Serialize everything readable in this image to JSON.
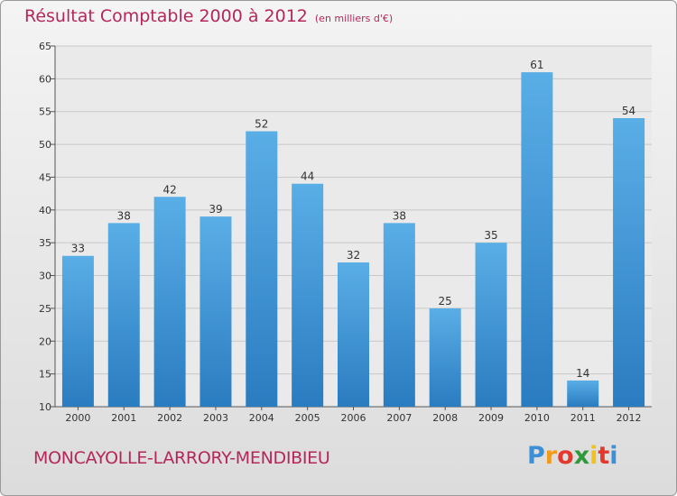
{
  "header": {
    "title": "Résultat Comptable 2000 à 2012",
    "subtitle": "(en milliers d'€)"
  },
  "footer": {
    "commune": "MONCAYOLLE-LARRORY-MENDIBIEU",
    "logo_letters": [
      "P",
      "r",
      "o",
      "x",
      "i",
      "t",
      "i"
    ],
    "logo_colors": [
      "#3d8fd6",
      "#f29a1c",
      "#e6372c",
      "#2e9a3a",
      "#f2c21c",
      "#e6372c",
      "#3d8fd6"
    ]
  },
  "chart_data": {
    "type": "bar",
    "title": "Résultat Comptable 2000 à 2012",
    "subtitle": "(en milliers d'€)",
    "xlabel": "",
    "ylabel": "",
    "categories": [
      "2000",
      "2001",
      "2002",
      "2003",
      "2004",
      "2005",
      "2006",
      "2007",
      "2008",
      "2009",
      "2010",
      "2011",
      "2012"
    ],
    "values": [
      33,
      38,
      42,
      39,
      52,
      44,
      32,
      38,
      25,
      35,
      61,
      14,
      54
    ],
    "ylim": [
      10,
      65
    ],
    "yticks": [
      10,
      15,
      20,
      25,
      30,
      35,
      40,
      45,
      50,
      55,
      60,
      65
    ],
    "grid": true,
    "colors": {
      "bar_top": "#5aaee6",
      "bar_bottom": "#2a7cc0",
      "grid": "#c8c8c8",
      "plot_bg": "#eaeaea"
    }
  }
}
